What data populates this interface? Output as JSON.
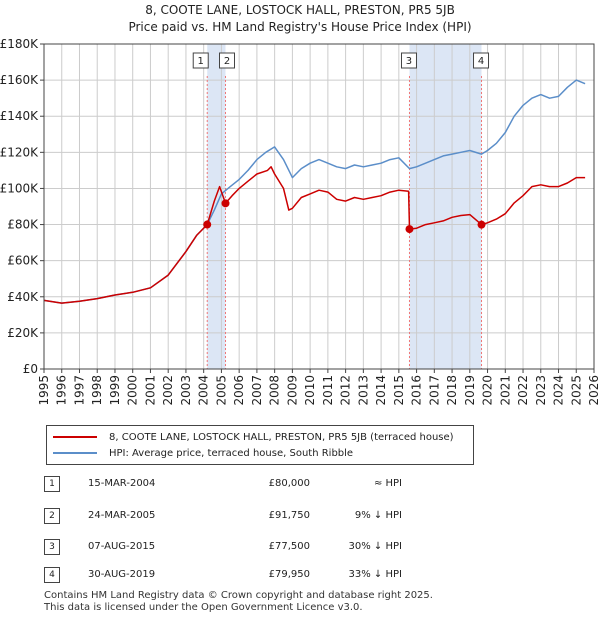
{
  "header": {
    "title": "8, COOTE LANE, LOSTOCK HALL, PRESTON, PR5 5JB",
    "subtitle": "Price paid vs. HM Land Registry's House Price Index (HPI)"
  },
  "colors": {
    "property": "#cc0000",
    "hpi": "#5b8ec9",
    "shade": "#dce6f5",
    "grid": "#cccccc",
    "vline": "#ee7777"
  },
  "chart_data": {
    "type": "line",
    "title": "Price paid vs. HM Land Registry's House Price Index (HPI)",
    "xlim": [
      1995,
      2026
    ],
    "ylim": [
      0,
      180000
    ],
    "x_ticks": [
      "1995",
      "1996",
      "1997",
      "1998",
      "1999",
      "2000",
      "2001",
      "2002",
      "2003",
      "2004",
      "2005",
      "2006",
      "2007",
      "2008",
      "2009",
      "2010",
      "2011",
      "2012",
      "2013",
      "2014",
      "2015",
      "2016",
      "2017",
      "2018",
      "2019",
      "2020",
      "2021",
      "2022",
      "2023",
      "2024",
      "2025",
      "2026"
    ],
    "y_ticks": [
      {
        "value": 0,
        "label": "£0"
      },
      {
        "value": 20000,
        "label": "£20K"
      },
      {
        "value": 40000,
        "label": "£40K"
      },
      {
        "value": 60000,
        "label": "£60K"
      },
      {
        "value": 80000,
        "label": "£80K"
      },
      {
        "value": 100000,
        "label": "£100K"
      },
      {
        "value": 120000,
        "label": "£120K"
      },
      {
        "value": 140000,
        "label": "£140K"
      },
      {
        "value": 160000,
        "label": "£160K"
      },
      {
        "value": 180000,
        "label": "£180K"
      }
    ],
    "shaded_ranges": [
      [
        2004.2,
        2005.23
      ],
      [
        2015.6,
        2019.66
      ]
    ],
    "series": [
      {
        "name": "8, COOTE LANE, LOSTOCK HALL, PRESTON, PR5 5JB (terraced house)",
        "color": "#cc0000",
        "points": [
          [
            1995,
            38000
          ],
          [
            1996,
            36500
          ],
          [
            1997,
            37500
          ],
          [
            1998,
            39000
          ],
          [
            1999,
            41000
          ],
          [
            2000,
            42500
          ],
          [
            2001,
            45000
          ],
          [
            2002,
            52000
          ],
          [
            2003,
            65000
          ],
          [
            2003.6,
            74000
          ],
          [
            2004.2,
            80000
          ],
          [
            2004.6,
            93000
          ],
          [
            2004.9,
            101000
          ],
          [
            2005.23,
            91750
          ],
          [
            2005.6,
            96000
          ],
          [
            2006,
            100000
          ],
          [
            2006.5,
            104000
          ],
          [
            2007,
            108000
          ],
          [
            2007.6,
            110000
          ],
          [
            2007.8,
            112000
          ],
          [
            2008,
            108000
          ],
          [
            2008.5,
            100000
          ],
          [
            2008.8,
            88000
          ],
          [
            2009,
            89000
          ],
          [
            2009.5,
            95000
          ],
          [
            2010,
            97000
          ],
          [
            2010.5,
            99000
          ],
          [
            2011,
            98000
          ],
          [
            2011.5,
            94000
          ],
          [
            2012,
            93000
          ],
          [
            2012.5,
            95000
          ],
          [
            2013,
            94000
          ],
          [
            2013.5,
            95000
          ],
          [
            2014,
            96000
          ],
          [
            2014.5,
            98000
          ],
          [
            2015,
            99000
          ],
          [
            2015.55,
            98500
          ],
          [
            2015.6,
            77500
          ],
          [
            2016,
            78000
          ],
          [
            2016.5,
            80000
          ],
          [
            2017,
            81000
          ],
          [
            2017.5,
            82000
          ],
          [
            2018,
            84000
          ],
          [
            2018.5,
            85000
          ],
          [
            2019,
            85500
          ],
          [
            2019.66,
            79950
          ],
          [
            2020,
            81000
          ],
          [
            2020.5,
            83000
          ],
          [
            2021,
            86000
          ],
          [
            2021.5,
            92000
          ],
          [
            2022,
            96000
          ],
          [
            2022.5,
            101000
          ],
          [
            2023,
            102000
          ],
          [
            2023.5,
            101000
          ],
          [
            2024,
            101000
          ],
          [
            2024.5,
            103000
          ],
          [
            2025,
            106000
          ],
          [
            2025.5,
            106000
          ]
        ]
      },
      {
        "name": "HPI: Average price, terraced house, South Ribble",
        "color": "#5b8ec9",
        "points": [
          [
            1995,
            38000
          ],
          [
            1996,
            36500
          ],
          [
            1997,
            37500
          ],
          [
            1998,
            39000
          ],
          [
            1999,
            41000
          ],
          [
            2000,
            42500
          ],
          [
            2001,
            45000
          ],
          [
            2002,
            52000
          ],
          [
            2003,
            65000
          ],
          [
            2003.6,
            74000
          ],
          [
            2004.2,
            80000
          ],
          [
            2004.6,
            88000
          ],
          [
            2005,
            97000
          ],
          [
            2005.5,
            101000
          ],
          [
            2006,
            105000
          ],
          [
            2006.5,
            110000
          ],
          [
            2007,
            116000
          ],
          [
            2007.5,
            120000
          ],
          [
            2008,
            123000
          ],
          [
            2008.5,
            116000
          ],
          [
            2009,
            106000
          ],
          [
            2009.5,
            111000
          ],
          [
            2010,
            114000
          ],
          [
            2010.5,
            116000
          ],
          [
            2011,
            114000
          ],
          [
            2011.5,
            112000
          ],
          [
            2012,
            111000
          ],
          [
            2012.5,
            113000
          ],
          [
            2013,
            112000
          ],
          [
            2013.5,
            113000
          ],
          [
            2014,
            114000
          ],
          [
            2014.5,
            116000
          ],
          [
            2015,
            117000
          ],
          [
            2015.6,
            111000
          ],
          [
            2016,
            112000
          ],
          [
            2016.5,
            114000
          ],
          [
            2017,
            116000
          ],
          [
            2017.5,
            118000
          ],
          [
            2018,
            119000
          ],
          [
            2018.5,
            120000
          ],
          [
            2019,
            121000
          ],
          [
            2019.66,
            119000
          ],
          [
            2020,
            121000
          ],
          [
            2020.5,
            125000
          ],
          [
            2021,
            131000
          ],
          [
            2021.5,
            140000
          ],
          [
            2022,
            146000
          ],
          [
            2022.5,
            150000
          ],
          [
            2023,
            152000
          ],
          [
            2023.5,
            150000
          ],
          [
            2024,
            151000
          ],
          [
            2024.5,
            156000
          ],
          [
            2025,
            160000
          ],
          [
            2025.5,
            158000
          ]
        ]
      }
    ],
    "sales": [
      {
        "num": "1",
        "x": 2004.2,
        "price": 80000
      },
      {
        "num": "2",
        "x": 2005.23,
        "price": 91750
      },
      {
        "num": "3",
        "x": 2015.6,
        "price": 77500
      },
      {
        "num": "4",
        "x": 2019.66,
        "price": 79950
      }
    ]
  },
  "legend": {
    "items": [
      {
        "label": "8, COOTE LANE, LOSTOCK HALL, PRESTON, PR5 5JB (terraced house)",
        "color": "#cc0000"
      },
      {
        "label": "HPI: Average price, terraced house, South Ribble",
        "color": "#5b8ec9"
      }
    ]
  },
  "transactions": [
    {
      "num": "1",
      "date": "15-MAR-2004",
      "price": "£80,000",
      "hpi": "≈ HPI"
    },
    {
      "num": "2",
      "date": "24-MAR-2005",
      "price": "£91,750",
      "hpi": "9% ↓ HPI"
    },
    {
      "num": "3",
      "date": "07-AUG-2015",
      "price": "£77,500",
      "hpi": "30% ↓ HPI"
    },
    {
      "num": "4",
      "date": "30-AUG-2019",
      "price": "£79,950",
      "hpi": "33% ↓ HPI"
    }
  ],
  "footer": {
    "line1": "Contains HM Land Registry data © Crown copyright and database right 2025.",
    "line2": "This data is licensed under the Open Government Licence v3.0."
  }
}
